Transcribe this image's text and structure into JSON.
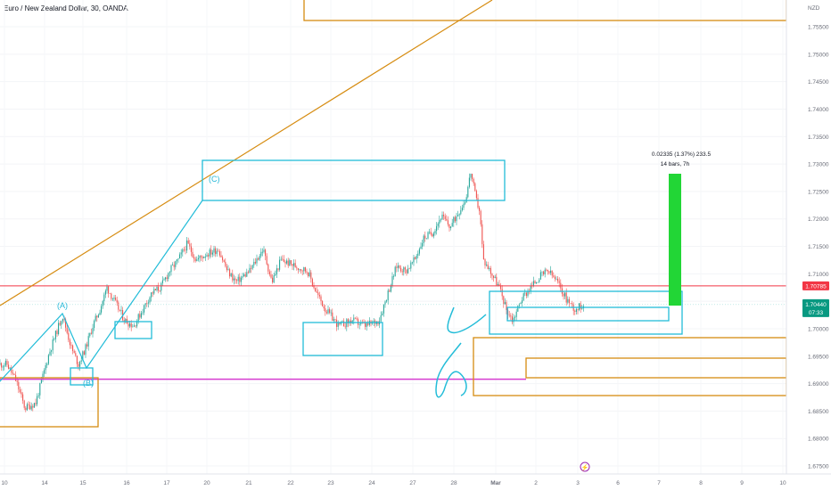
{
  "header": {
    "title": "Euro / New Zealand Dollar, 30, OANDA"
  },
  "chart_data": {
    "type": "candlestick",
    "currency": "NZD",
    "y_ticks": [
      "1.75500",
      "1.75000",
      "1.74500",
      "1.74000",
      "1.73500",
      "1.73000",
      "1.72500",
      "1.72000",
      "1.71500",
      "1.71000",
      "1.70500",
      "1.70000",
      "1.69500",
      "1.69000",
      "1.68500",
      "1.68000",
      "1.67500"
    ],
    "x_ticks": [
      "10",
      "14",
      "15",
      "16",
      "17",
      "20",
      "21",
      "22",
      "23",
      "24",
      "27",
      "28",
      "Mar",
      "2",
      "3",
      "6",
      "7",
      "8",
      "9",
      "10"
    ],
    "ylim": [
      1.673,
      1.7595
    ],
    "price_path": [
      [
        0,
        1.6935
      ],
      [
        8,
        1.6935
      ],
      [
        18,
        1.6905
      ],
      [
        28,
        1.6855
      ],
      [
        40,
        1.6865
      ],
      [
        55,
        1.6955
      ],
      [
        70,
        1.7025
      ],
      [
        80,
        1.6965
      ],
      [
        88,
        1.6935
      ],
      [
        96,
        1.6965
      ],
      [
        104,
        1.7005
      ],
      [
        112,
        1.7035
      ],
      [
        120,
        1.7075
      ],
      [
        130,
        1.7045
      ],
      [
        140,
        1.7015
      ],
      [
        150,
        1.7005
      ],
      [
        160,
        1.7035
      ],
      [
        170,
        1.7065
      ],
      [
        180,
        1.7075
      ],
      [
        190,
        1.7105
      ],
      [
        200,
        1.7125
      ],
      [
        210,
        1.7155
      ],
      [
        220,
        1.7125
      ],
      [
        230,
        1.7135
      ],
      [
        245,
        1.7145
      ],
      [
        255,
        1.7105
      ],
      [
        265,
        1.7085
      ],
      [
        280,
        1.7105
      ],
      [
        295,
        1.7145
      ],
      [
        305,
        1.7085
      ],
      [
        315,
        1.7125
      ],
      [
        330,
        1.7115
      ],
      [
        345,
        1.7105
      ],
      [
        355,
        1.7065
      ],
      [
        365,
        1.7035
      ],
      [
        380,
        1.7005
      ],
      [
        395,
        1.7015
      ],
      [
        410,
        1.7005
      ],
      [
        425,
        1.7015
      ],
      [
        435,
        1.7065
      ],
      [
        445,
        1.7115
      ],
      [
        455,
        1.7105
      ],
      [
        465,
        1.7125
      ],
      [
        475,
        1.7165
      ],
      [
        485,
        1.7175
      ],
      [
        495,
        1.7205
      ],
      [
        505,
        1.7185
      ],
      [
        515,
        1.7215
      ],
      [
        522,
        1.7235
      ],
      [
        528,
        1.7285
      ],
      [
        534,
        1.7235
      ],
      [
        538,
        1.7215
      ],
      [
        542,
        1.7125
      ],
      [
        550,
        1.7105
      ],
      [
        560,
        1.7075
      ],
      [
        568,
        1.7035
      ],
      [
        575,
        1.7015
      ],
      [
        585,
        1.7055
      ],
      [
        595,
        1.7075
      ],
      [
        605,
        1.7095
      ],
      [
        615,
        1.7105
      ],
      [
        625,
        1.7085
      ],
      [
        635,
        1.7055
      ],
      [
        645,
        1.7035
      ],
      [
        655,
        1.7045
      ]
    ],
    "last_price": "1.70440",
    "countdown": "07:33",
    "resistance_level": "1.70785",
    "measure": {
      "line1": "0.02335 (1.37%) 233.5",
      "line2": "14 bars, 7h"
    },
    "wave_labels": [
      "(A)",
      "(B)",
      "(C)"
    ],
    "colors": {
      "bull": "#26a69a",
      "bear": "#ef5350",
      "annotation": "#22bcd8",
      "trendline": "#d68c11",
      "support": "#d53cd0",
      "resistance": "#f23645",
      "projection": "#22d636",
      "price_tag": "#089981"
    }
  }
}
